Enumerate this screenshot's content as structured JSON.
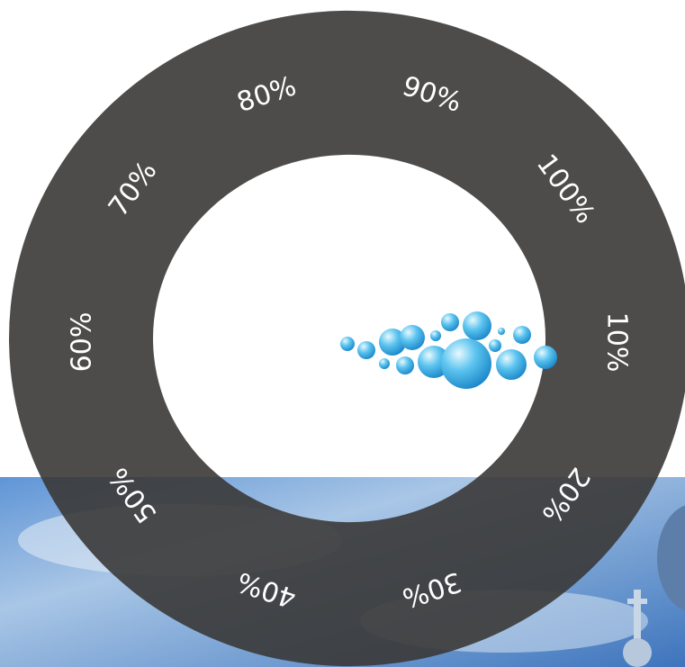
{
  "dial": {
    "labels": [
      "10%",
      "20%",
      "30%",
      "40%",
      "50%",
      "60%",
      "70%",
      "80%",
      "90%",
      "100%"
    ]
  }
}
